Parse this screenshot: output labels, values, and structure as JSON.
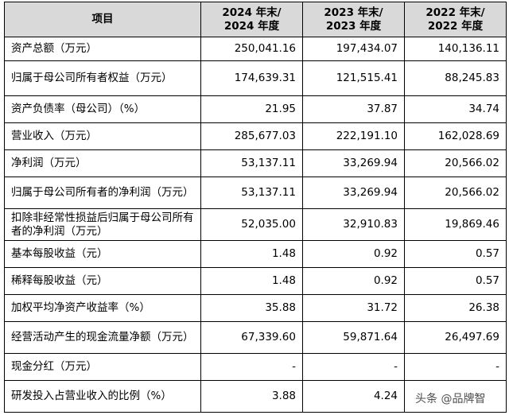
{
  "table": {
    "headers": [
      "项目",
      "2024 年末/\n2024 年度",
      "2023 年末/\n2023 年度",
      "2022 年末/\n2022 年度"
    ],
    "rows": [
      {
        "label": "资产总额（万元）",
        "values": [
          "250,041.16",
          "197,434.07",
          "140,136.11"
        ]
      },
      {
        "label": "归属于母公司所有者权益（万元）",
        "values": [
          "174,639.31",
          "121,515.41",
          "88,245.83"
        ]
      },
      {
        "label": "资产负债率（母公司）（%）",
        "values": [
          "21.95",
          "37.87",
          "34.74"
        ]
      },
      {
        "label": "营业收入（万元）",
        "values": [
          "285,677.03",
          "222,191.10",
          "162,028.69"
        ]
      },
      {
        "label": "净利润（万元）",
        "values": [
          "53,137.11",
          "33,269.94",
          "20,566.02"
        ]
      },
      {
        "label": "归属于母公司所有者的净利润（万元）",
        "values": [
          "53,137.11",
          "33,269.94",
          "20,566.02"
        ]
      },
      {
        "label": "扣除非经常性损益后归属于母公司所有者的净利润（万元）",
        "values": [
          "52,035.00",
          "32,910.83",
          "19,869.46"
        ]
      },
      {
        "label": "基本每股收益（元）",
        "values": [
          "1.48",
          "0.92",
          "0.57"
        ]
      },
      {
        "label": "稀释每股收益（元）",
        "values": [
          "1.48",
          "0.92",
          "0.57"
        ]
      },
      {
        "label": "加权平均净资产收益率（%）",
        "values": [
          "35.88",
          "31.72",
          "26.38"
        ]
      },
      {
        "label": "经营活动产生的现金流量净额（万元）",
        "values": [
          "67,339.60",
          "59,871.64",
          "26,497.69"
        ]
      },
      {
        "label": "现金分红（万元）",
        "values": [
          "-",
          "-",
          "-"
        ]
      },
      {
        "label": "研发投入占营业收入的比例（%）",
        "values": [
          "3.88",
          "4.24",
          ""
        ]
      }
    ]
  },
  "watermark": "头条 @品牌智"
}
